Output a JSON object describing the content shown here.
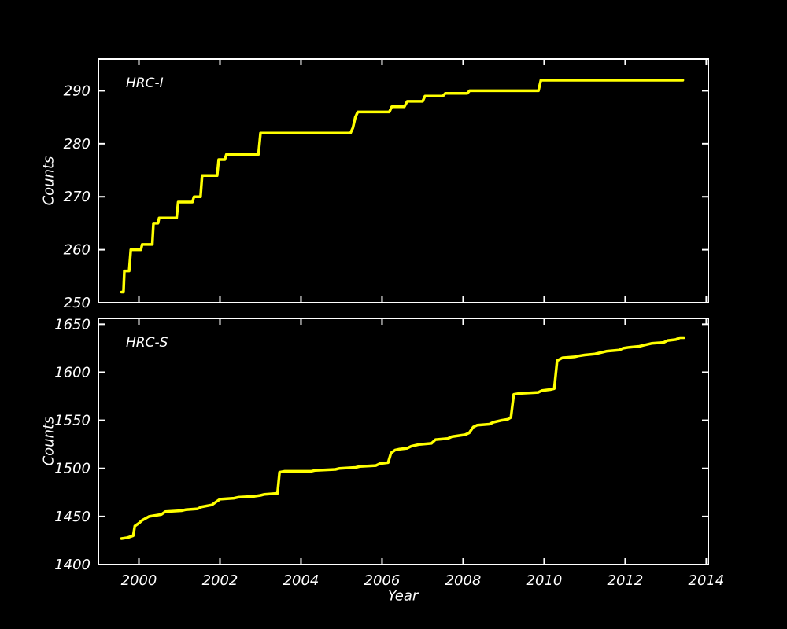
{
  "figure": {
    "background_color": "#000000",
    "axes_color": "#ffffff",
    "text_color": "#ffffff",
    "line_color": "#ffff00"
  },
  "chart_data": [
    {
      "type": "line",
      "title": "HRC-I",
      "xlabel": "",
      "ylabel": "Counts",
      "xlim": [
        1999,
        2014.05
      ],
      "ylim": [
        250,
        296
      ],
      "xticks": [
        2000,
        2002,
        2004,
        2006,
        2008,
        2010,
        2012,
        2014
      ],
      "yticks": [
        250,
        260,
        270,
        280,
        290
      ],
      "grid": false,
      "legend": "none",
      "line_color": "#ffff00",
      "series": [
        {
          "name": "HRC-I cumulative counts vs year",
          "points": [
            [
              1999.57,
              252
            ],
            [
              1999.62,
              252
            ],
            [
              1999.64,
              256
            ],
            [
              1999.76,
              256
            ],
            [
              1999.8,
              260
            ],
            [
              2000.05,
              260
            ],
            [
              2000.08,
              261
            ],
            [
              2000.33,
              261
            ],
            [
              2000.36,
              265
            ],
            [
              2000.47,
              265
            ],
            [
              2000.5,
              266
            ],
            [
              2000.93,
              266
            ],
            [
              2000.97,
              269
            ],
            [
              2001.32,
              269
            ],
            [
              2001.36,
              270
            ],
            [
              2001.52,
              270
            ],
            [
              2001.56,
              274
            ],
            [
              2001.93,
              274
            ],
            [
              2001.97,
              277
            ],
            [
              2002.12,
              277
            ],
            [
              2002.16,
              278
            ],
            [
              2002.95,
              278
            ],
            [
              2003.0,
              282
            ],
            [
              2005.22,
              282
            ],
            [
              2005.28,
              283
            ],
            [
              2005.34,
              285
            ],
            [
              2005.4,
              286
            ],
            [
              2006.18,
              286
            ],
            [
              2006.24,
              287
            ],
            [
              2006.55,
              287
            ],
            [
              2006.62,
              288
            ],
            [
              2007.0,
              288
            ],
            [
              2007.06,
              289
            ],
            [
              2007.5,
              289
            ],
            [
              2007.56,
              289.5
            ],
            [
              2008.1,
              289.5
            ],
            [
              2008.16,
              290
            ],
            [
              2009.86,
              290
            ],
            [
              2009.92,
              292
            ],
            [
              2013.42,
              292
            ]
          ]
        }
      ]
    },
    {
      "type": "line",
      "title": "HRC-S",
      "xlabel": "Year",
      "ylabel": "Counts",
      "xlim": [
        1999,
        2014.05
      ],
      "ylim": [
        1400,
        1656
      ],
      "xticks": [
        2000,
        2002,
        2004,
        2006,
        2008,
        2010,
        2012,
        2014
      ],
      "yticks": [
        1400,
        1450,
        1500,
        1550,
        1600,
        1650
      ],
      "grid": false,
      "legend": "none",
      "line_color": "#ffff00",
      "series": [
        {
          "name": "HRC-S cumulative counts vs year",
          "points": [
            [
              1999.57,
              1427
            ],
            [
              1999.72,
              1428
            ],
            [
              1999.86,
              1430
            ],
            [
              1999.9,
              1440
            ],
            [
              2000.0,
              1443
            ],
            [
              2000.08,
              1446
            ],
            [
              2000.25,
              1450
            ],
            [
              2000.55,
              1452
            ],
            [
              2000.65,
              1455
            ],
            [
              2001.05,
              1456
            ],
            [
              2001.15,
              1457
            ],
            [
              2001.45,
              1458
            ],
            [
              2001.55,
              1460
            ],
            [
              2001.8,
              1462
            ],
            [
              2001.9,
              1465
            ],
            [
              2002.0,
              1468
            ],
            [
              2002.35,
              1469
            ],
            [
              2002.45,
              1470
            ],
            [
              2002.85,
              1471
            ],
            [
              2003.0,
              1472
            ],
            [
              2003.1,
              1473
            ],
            [
              2003.42,
              1474
            ],
            [
              2003.47,
              1496
            ],
            [
              2003.6,
              1497
            ],
            [
              2004.25,
              1497
            ],
            [
              2004.35,
              1498
            ],
            [
              2004.85,
              1499
            ],
            [
              2004.95,
              1500
            ],
            [
              2005.35,
              1501
            ],
            [
              2005.45,
              1502
            ],
            [
              2005.85,
              1503
            ],
            [
              2005.95,
              1505
            ],
            [
              2006.15,
              1506
            ],
            [
              2006.22,
              1516
            ],
            [
              2006.32,
              1519
            ],
            [
              2006.42,
              1520
            ],
            [
              2006.62,
              1521
            ],
            [
              2006.72,
              1523
            ],
            [
              2006.92,
              1525
            ],
            [
              2007.22,
              1526
            ],
            [
              2007.32,
              1530
            ],
            [
              2007.62,
              1531
            ],
            [
              2007.72,
              1533
            ],
            [
              2008.05,
              1535
            ],
            [
              2008.15,
              1537
            ],
            [
              2008.25,
              1543
            ],
            [
              2008.35,
              1545
            ],
            [
              2008.65,
              1546
            ],
            [
              2008.75,
              1548
            ],
            [
              2008.95,
              1550
            ],
            [
              2009.1,
              1551
            ],
            [
              2009.18,
              1553
            ],
            [
              2009.25,
              1577
            ],
            [
              2009.4,
              1578
            ],
            [
              2009.85,
              1579
            ],
            [
              2009.95,
              1581
            ],
            [
              2010.15,
              1582
            ],
            [
              2010.25,
              1583
            ],
            [
              2010.32,
              1612
            ],
            [
              2010.45,
              1615
            ],
            [
              2010.75,
              1616
            ],
            [
              2010.85,
              1617
            ],
            [
              2011.0,
              1618
            ],
            [
              2011.25,
              1619
            ],
            [
              2011.35,
              1620
            ],
            [
              2011.55,
              1622
            ],
            [
              2011.85,
              1623
            ],
            [
              2011.95,
              1625
            ],
            [
              2012.1,
              1626
            ],
            [
              2012.35,
              1627
            ],
            [
              2012.45,
              1628
            ],
            [
              2012.65,
              1630
            ],
            [
              2012.95,
              1631
            ],
            [
              2013.05,
              1633
            ],
            [
              2013.25,
              1634
            ],
            [
              2013.35,
              1636
            ],
            [
              2013.45,
              1636
            ]
          ]
        }
      ]
    }
  ]
}
